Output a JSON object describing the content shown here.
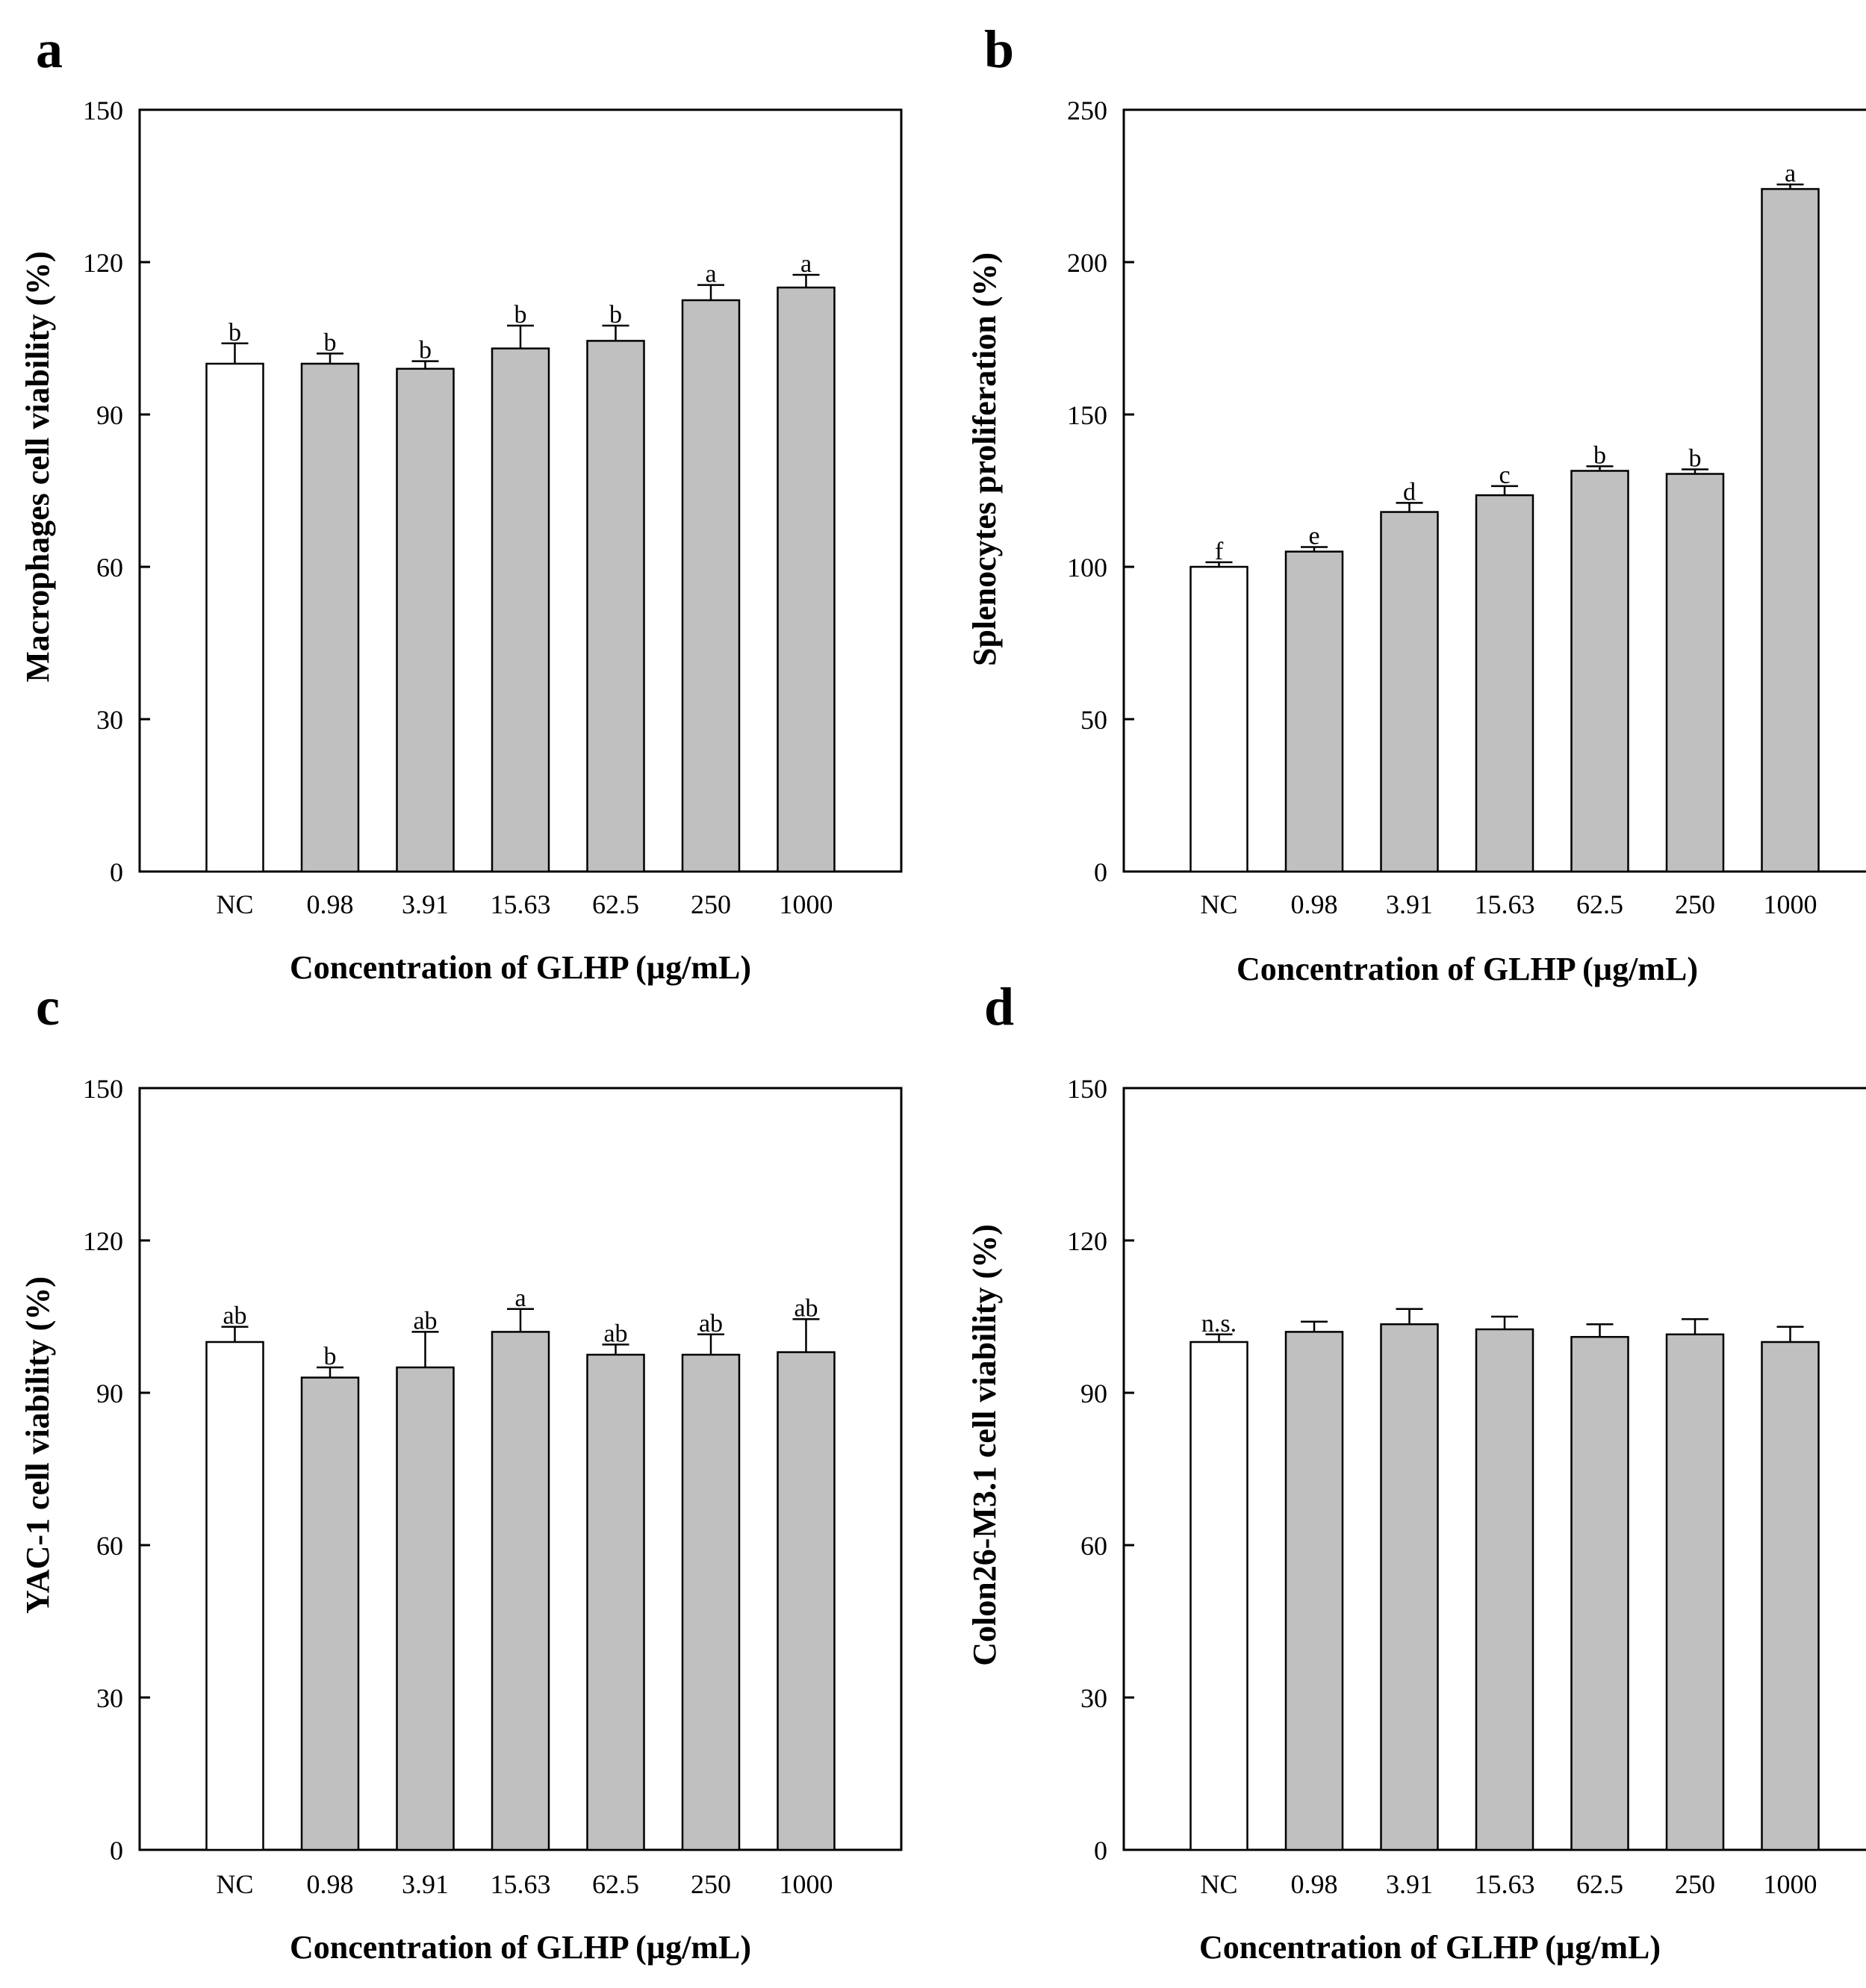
{
  "chart_data": [
    {
      "panel": "a",
      "type": "bar",
      "categories": [
        "NC",
        "0.98",
        "3.91",
        "15.63",
        "62.5",
        "250",
        "1000"
      ],
      "values": [
        100,
        100,
        99,
        103,
        104.5,
        112.5,
        115
      ],
      "errors": [
        4,
        2,
        1.5,
        4.5,
        3,
        3,
        2.5
      ],
      "significance": [
        "b",
        "b",
        "b",
        "b",
        "b",
        "a",
        "a"
      ],
      "bar_colors": [
        "#ffffff",
        "#c0c0c0",
        "#c0c0c0",
        "#c0c0c0",
        "#c0c0c0",
        "#c0c0c0",
        "#c0c0c0"
      ],
      "xlabel": "Concentration of GLHP (µg/mL)",
      "ylabel": "Macrophages cell viability (%)",
      "ylim": [
        0,
        150
      ],
      "yticks": [
        0,
        30,
        60,
        90,
        120,
        150
      ]
    },
    {
      "panel": "b",
      "type": "bar",
      "categories": [
        "NC",
        "0.98",
        "3.91",
        "15.63",
        "62.5",
        "250",
        "1000"
      ],
      "values": [
        100,
        105,
        118,
        123.5,
        131.5,
        130.5,
        224
      ],
      "errors": [
        1.5,
        1.5,
        3,
        3,
        1.5,
        1.5,
        1.5
      ],
      "significance": [
        "f",
        "e",
        "d",
        "c",
        "b",
        "b",
        "a"
      ],
      "bar_colors": [
        "#ffffff",
        "#c0c0c0",
        "#c0c0c0",
        "#c0c0c0",
        "#c0c0c0",
        "#c0c0c0",
        "#c0c0c0"
      ],
      "xlabel": "Concentration of GLHP (µg/mL)",
      "ylabel": "Splenocytes proliferation (%)",
      "ylim": [
        0,
        250
      ],
      "yticks": [
        0,
        50,
        100,
        150,
        200,
        250
      ]
    },
    {
      "panel": "c",
      "type": "bar",
      "categories": [
        "NC",
        "0.98",
        "3.91",
        "15.63",
        "62.5",
        "250",
        "1000"
      ],
      "values": [
        100,
        93,
        95,
        102,
        97.5,
        97.5,
        98
      ],
      "errors": [
        3,
        2,
        7,
        4.5,
        2,
        4,
        6.5
      ],
      "significance": [
        "ab",
        "b",
        "ab",
        "a",
        "ab",
        "ab",
        "ab"
      ],
      "bar_colors": [
        "#ffffff",
        "#c0c0c0",
        "#c0c0c0",
        "#c0c0c0",
        "#c0c0c0",
        "#c0c0c0",
        "#c0c0c0"
      ],
      "xlabel": "Concentration of GLHP (µg/mL)",
      "ylabel": "YAC-1 cell viability (%)",
      "ylim": [
        0,
        150
      ],
      "yticks": [
        0,
        30,
        60,
        90,
        120,
        150
      ]
    },
    {
      "panel": "d",
      "type": "bar",
      "categories": [
        "NC",
        "0.98",
        "3.91",
        "15.63",
        "62.5",
        "250",
        "1000"
      ],
      "values": [
        100,
        102,
        103.5,
        102.5,
        101,
        101.5,
        100
      ],
      "errors": [
        1.5,
        2,
        3,
        2.5,
        2.5,
        3,
        3
      ],
      "significance": [
        "n.s.",
        "",
        "",
        "",
        "",
        "",
        ""
      ],
      "bar_colors": [
        "#ffffff",
        "#c0c0c0",
        "#c0c0c0",
        "#c0c0c0",
        "#c0c0c0",
        "#c0c0c0",
        "#c0c0c0"
      ],
      "xlabel": "Concentration of GLHP (µg/mL)",
      "ylabel": "Colon26-M3.1 cell viability (%)",
      "ylim": [
        0,
        150
      ],
      "yticks": [
        0,
        30,
        60,
        90,
        120,
        150
      ]
    }
  ]
}
